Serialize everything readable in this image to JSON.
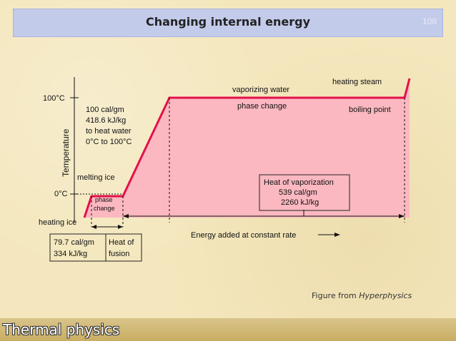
{
  "slide": {
    "title": "Changing internal energy",
    "slide_number": "108",
    "footer": "Thermal physics",
    "credit_prefix": "Figure from ",
    "credit_source": "Hyperphysics"
  },
  "colors": {
    "fill": "#fbb8c0",
    "curve": "#e4104a",
    "box_border": "#222222"
  },
  "chart_data": {
    "type": "line",
    "ylabel": "Temperature",
    "y_ticks": [
      "100°C",
      "0°C"
    ],
    "xlabel": "Energy added at constant rate",
    "segments": [
      {
        "name": "heating ice"
      },
      {
        "name": "melting ice",
        "label_lines": [
          "phase",
          "change"
        ]
      },
      {
        "name": "heating water",
        "label_lines": [
          "100 cal/gm",
          "418.6 kJ/kg",
          "to heat water",
          "0°C to 100°C"
        ]
      },
      {
        "name": "vaporizing water",
        "sublabel": "phase change"
      },
      {
        "name": "heating steam"
      }
    ],
    "boiling_point_label": "boiling point",
    "heat_of_vaporization_lines": [
      "Heat of vaporization",
      "539 cal/gm",
      "2260 kJ/kg"
    ],
    "fusion_value_lines": [
      "79.7 cal/gm",
      "334 kJ/kg"
    ],
    "fusion_label_lines": [
      "Heat of",
      "fusion"
    ]
  }
}
